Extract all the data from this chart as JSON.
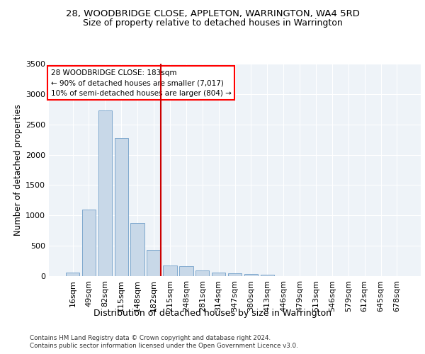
{
  "title": "28, WOODBRIDGE CLOSE, APPLETON, WARRINGTON, WA4 5RD",
  "subtitle": "Size of property relative to detached houses in Warrington",
  "xlabel": "Distribution of detached houses by size in Warrington",
  "ylabel": "Number of detached properties",
  "categories": [
    "16sqm",
    "49sqm",
    "82sqm",
    "115sqm",
    "148sqm",
    "182sqm",
    "215sqm",
    "248sqm",
    "281sqm",
    "314sqm",
    "347sqm",
    "380sqm",
    "413sqm",
    "446sqm",
    "479sqm",
    "513sqm",
    "546sqm",
    "579sqm",
    "612sqm",
    "645sqm",
    "678sqm"
  ],
  "values": [
    55,
    1100,
    2730,
    2280,
    880,
    430,
    170,
    165,
    90,
    60,
    50,
    30,
    25,
    0,
    0,
    0,
    0,
    0,
    0,
    0,
    0
  ],
  "bar_color": "#c8d8e8",
  "bar_edge_color": "#5a8fc0",
  "red_line_index": 5,
  "annotation_text": "28 WOODBRIDGE CLOSE: 183sqm\n← 90% of detached houses are smaller (7,017)\n10% of semi-detached houses are larger (804) →",
  "annotation_box_color": "white",
  "annotation_box_edge": "red",
  "ylim": [
    0,
    3500
  ],
  "yticks": [
    0,
    500,
    1000,
    1500,
    2000,
    2500,
    3000,
    3500
  ],
  "title_fontsize": 9.5,
  "subtitle_fontsize": 9,
  "xlabel_fontsize": 9,
  "ylabel_fontsize": 8.5,
  "tick_fontsize": 8,
  "annot_fontsize": 7.5,
  "footer_line1": "Contains HM Land Registry data © Crown copyright and database right 2024.",
  "footer_line2": "Contains public sector information licensed under the Open Government Licence v3.0.",
  "bg_color": "#eef3f8",
  "grid_color": "white",
  "red_line_color": "#cc0000"
}
